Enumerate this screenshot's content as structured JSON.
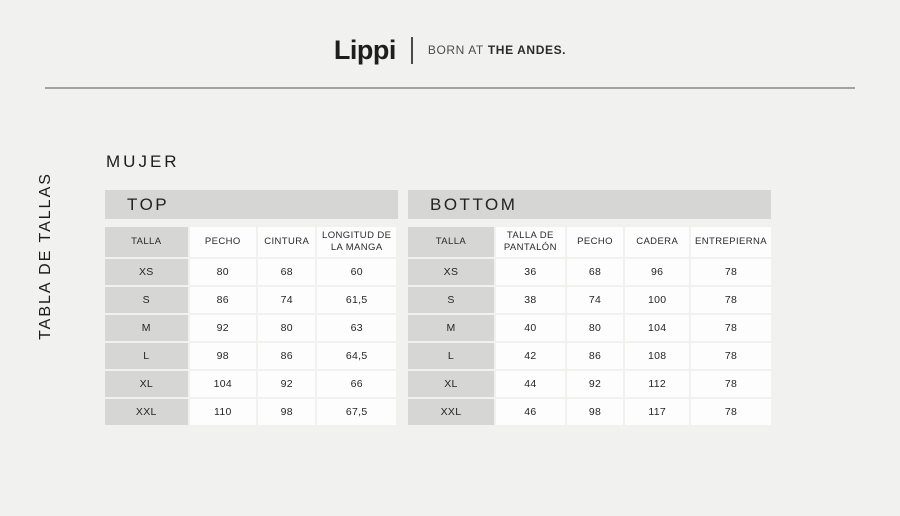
{
  "header": {
    "logo": "Lippi",
    "tagline_regular": "BORN AT",
    "tagline_bold": "THE ANDES."
  },
  "sidebar": {
    "vertical_label": "TABLA DE TALLAS"
  },
  "page": {
    "gender_title": "MUJER"
  },
  "top_table": {
    "title": "TOP",
    "columns": [
      "TALLA",
      "PECHO",
      "CINTURA",
      "LONGITUD DE LA MANGA"
    ],
    "rows": [
      [
        "XS",
        "80",
        "68",
        "60"
      ],
      [
        "S",
        "86",
        "74",
        "61,5"
      ],
      [
        "M",
        "92",
        "80",
        "63"
      ],
      [
        "L",
        "98",
        "86",
        "64,5"
      ],
      [
        "XL",
        "104",
        "92",
        "66"
      ],
      [
        "XXL",
        "110",
        "98",
        "67,5"
      ]
    ]
  },
  "bottom_table": {
    "title": "BOTTOM",
    "columns": [
      "TALLA",
      "TALLA DE PANTALÓN",
      "PECHO",
      "CADERA",
      "ENTREPIERNA"
    ],
    "rows": [
      [
        "XS",
        "36",
        "68",
        "96",
        "78"
      ],
      [
        "S",
        "38",
        "74",
        "100",
        "78"
      ],
      [
        "M",
        "40",
        "80",
        "104",
        "78"
      ],
      [
        "L",
        "42",
        "86",
        "108",
        "78"
      ],
      [
        "XL",
        "44",
        "92",
        "112",
        "78"
      ],
      [
        "XXL",
        "46",
        "98",
        "117",
        "78"
      ]
    ]
  },
  "colors": {
    "background": "#f1f1f0",
    "section_bar": "#d6d6d5",
    "size_column": "#d6d6d5",
    "cell_background": "#fdfdfd",
    "text": "#222222",
    "divider": "#a3a3a1"
  }
}
